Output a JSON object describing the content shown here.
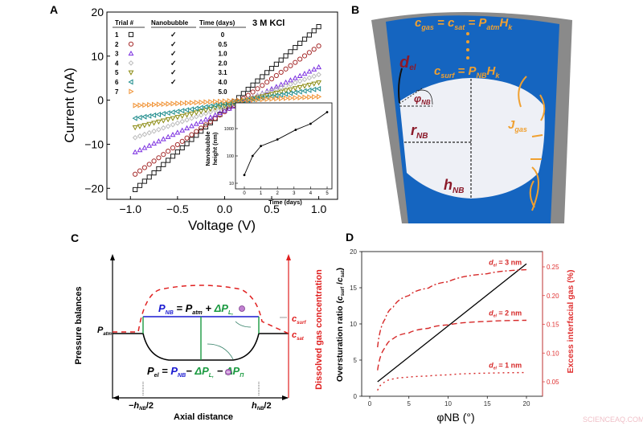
{
  "panels": {
    "a": "A",
    "b": "B",
    "c": "C",
    "d": "D"
  },
  "watermark": "SCIENCEAQ.COM",
  "chart_data": [
    {
      "type": "scatter",
      "panel": "A",
      "xlabel": "Voltage (V)",
      "ylabel": "Current (nA)",
      "xlim": [
        -1.25,
        1.2
      ],
      "ylim": [
        -22.5,
        20
      ],
      "xticks": [
        "−1.0",
        "−0.5",
        "0.0",
        "0.5",
        "1.0"
      ],
      "xtick_values": [
        -1,
        -0.5,
        0,
        0.5,
        1
      ],
      "yticks": [
        "−20",
        "−10",
        "0",
        "10",
        "20"
      ],
      "ytick_values": [
        -20,
        -10,
        0,
        10,
        20
      ],
      "annotation": "3 M KCl",
      "legend_headers": [
        "Trial #",
        "Nanobubble",
        "Time (days)"
      ],
      "series": [
        {
          "name": "1",
          "marker": "square",
          "color": "#1a1a1a",
          "nanobubble": "✓",
          "time": "0",
          "v_range": [
            -0.95,
            1.0
          ],
          "i_range": [
            -20.3,
            16.7
          ]
        },
        {
          "name": "2",
          "marker": "circle",
          "color": "#a52a2a",
          "nanobubble": "✓",
          "time": "0.5",
          "v_range": [
            -0.95,
            1.0
          ],
          "i_range": [
            -16.8,
            12.3
          ]
        },
        {
          "name": "3",
          "marker": "triangle-up",
          "color": "#7b2fe0",
          "nanobubble": "✓",
          "time": "1.0",
          "v_range": [
            -0.95,
            1.0
          ],
          "i_range": [
            -11.8,
            7.5
          ]
        },
        {
          "name": "4",
          "marker": "diamond",
          "color": "#bbbbbb",
          "nanobubble": "✓",
          "time": "2.0",
          "v_range": [
            -0.95,
            1.0
          ],
          "i_range": [
            -8.5,
            5.8
          ]
        },
        {
          "name": "5",
          "marker": "triangle-down",
          "color": "#8a8a10",
          "nanobubble": "✓",
          "time": "3.1",
          "v_range": [
            -0.95,
            1.0
          ],
          "i_range": [
            -6.2,
            4.0
          ]
        },
        {
          "name": "6",
          "marker": "triangle-left",
          "color": "#1a8a8a",
          "nanobubble": "✓",
          "time": "4.0",
          "v_range": [
            -0.95,
            1.0
          ],
          "i_range": [
            -4.1,
            2.6
          ]
        },
        {
          "name": "7",
          "marker": "triangle-right",
          "color": "#f09030",
          "nanobubble": "",
          "time": "5.0",
          "v_range": [
            -0.95,
            1.0
          ],
          "i_range": [
            -1.2,
            0.8
          ]
        }
      ]
    },
    {
      "type": "line",
      "panel": "A-inset",
      "xlabel": "Time (days)",
      "ylabel": "Nanobubble height (nm)",
      "yscale": "log",
      "xlim": [
        -0.3,
        5.3
      ],
      "ylim": [
        10,
        8700
      ],
      "xticks": [
        "0",
        "1",
        "2",
        "3",
        "4",
        "5"
      ],
      "yticks": [
        "10",
        "100",
        "1000"
      ],
      "x": [
        0,
        0.5,
        1,
        2,
        3.1,
        4,
        5
      ],
      "y": [
        20,
        100,
        230,
        400,
        900,
        1500,
        4000
      ]
    },
    {
      "type": "line",
      "panel": "D",
      "xlabel": "φNB (°)",
      "ylabel": "Oversturation ratio (csurf /csat)",
      "y2label": "Excess interfacial gas (%)",
      "xlim": [
        -1,
        22
      ],
      "ylim": [
        0,
        20
      ],
      "y2lim": [
        0.0269,
        0.2593
      ],
      "xticks": [
        "0",
        "5",
        "10",
        "15",
        "20"
      ],
      "yticks": [
        "0",
        "5",
        "10",
        "15",
        "20"
      ],
      "y2ticks": [
        "0.05",
        "0.10",
        "0.15",
        "0.20",
        "0.25"
      ],
      "ratio_line": {
        "x": [
          1,
          20
        ],
        "y": [
          2,
          18.3
        ],
        "color": "#000000"
      },
      "series": [
        {
          "name": "del = 3 nm",
          "label_d": "d",
          "label_sub": "el",
          "label_rest": " = 3 nm",
          "style": "dash-dot",
          "color": "#d62828",
          "x": [
            1,
            2,
            3,
            5,
            7.5,
            10,
            15,
            20
          ],
          "y": [
            0.11,
            0.16,
            0.18,
            0.2,
            0.213,
            0.224,
            0.238,
            0.245
          ]
        },
        {
          "name": "del = 2 nm",
          "label_d": "d",
          "label_sub": "el",
          "label_rest": " = 2 nm",
          "style": "dashed",
          "color": "#d62828",
          "x": [
            1,
            2,
            3,
            5,
            7.5,
            10,
            15,
            20
          ],
          "y": [
            0.07,
            0.11,
            0.125,
            0.135,
            0.143,
            0.149,
            0.155,
            0.157
          ]
        },
        {
          "name": "del = 1 nm",
          "label_d": "d",
          "label_sub": "el",
          "label_rest": " = 1 nm",
          "style": "dotted",
          "color": "#d62828",
          "x": [
            1,
            2,
            3,
            5,
            7.5,
            10,
            15,
            20
          ],
          "y": [
            0.035,
            0.05,
            0.055,
            0.058,
            0.06,
            0.062,
            0.065,
            0.066
          ]
        }
      ]
    }
  ],
  "diagram_b": {
    "eq_top": [
      "c",
      "gas",
      " = ",
      "c",
      "sat",
      " = ",
      "P",
      "atm",
      "H",
      "k"
    ],
    "eq_surf": [
      "c",
      "surf",
      " = ",
      "P",
      "NB",
      "H",
      "k"
    ],
    "d_el": [
      "d",
      "el"
    ],
    "phi": [
      "φ",
      "NB"
    ],
    "r": [
      "r",
      "NB"
    ],
    "h": [
      "h",
      "NB"
    ],
    "j": [
      "J",
      "gas"
    ],
    "colors": {
      "liquid": "#1565c0",
      "wall": "#8a8a8a",
      "bubble": "#eef0f6",
      "text_orange": "#f0a030",
      "text_red": "#8b1a2a"
    }
  },
  "diagram_c": {
    "ylabel": "Pressure balances",
    "y2label": "Dissolved gas concentration",
    "xlabel": "Axial distance",
    "p_atm": [
      "P",
      "atm"
    ],
    "c_surf": [
      "c",
      "surf"
    ],
    "c_sat": [
      "c",
      "sat"
    ],
    "x_left": [
      "−h",
      "NB",
      "/2"
    ],
    "x_right": [
      "h",
      "NB",
      "/2"
    ],
    "eq_nb": [
      "P",
      "NB",
      " = ",
      "P",
      "atm",
      " + ",
      "ΔP",
      "L,"
    ],
    "eq_el": [
      "P",
      "el",
      " = ",
      "P",
      "NB",
      "− ",
      "ΔP",
      "L,",
      "− ",
      "ΔP",
      "Π"
    ]
  }
}
